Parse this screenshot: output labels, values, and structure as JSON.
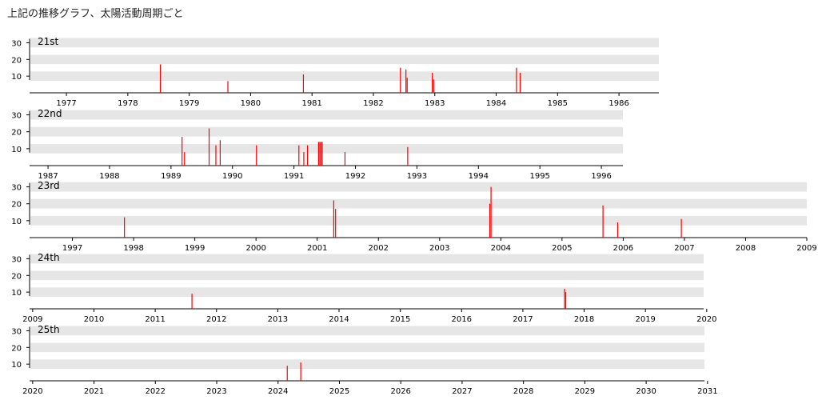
{
  "page": {
    "title": "上記の推移グラフ、太陽活動周期ごと"
  },
  "colors": {
    "band": "#e6e6e6",
    "spike": "#ff0000",
    "axis": "#000000"
  },
  "chart_data": [
    {
      "type": "bar",
      "title": "21st",
      "xlim": [
        1976.4,
        1986.65
      ],
      "ylim": [
        0,
        35
      ],
      "y_ticks": [
        10,
        20,
        30
      ],
      "x_ticks": [
        "1977",
        "1978",
        "1979",
        "1980",
        "1981",
        "1982",
        "1983",
        "1984",
        "1985",
        "1986"
      ],
      "x": [
        1978.53,
        1979.63,
        1980.86,
        1982.44,
        1982.53,
        1982.55,
        1982.96,
        1982.98,
        1984.33,
        1984.39
      ],
      "values": [
        17,
        7,
        11,
        15,
        14,
        9,
        12,
        8,
        15,
        12
      ]
    },
    {
      "type": "bar",
      "title": "22nd",
      "xlim": [
        1986.7,
        1996.35
      ],
      "ylim": [
        0,
        35
      ],
      "y_ticks": [
        10,
        20,
        30
      ],
      "x_ticks": [
        "1987",
        "1988",
        "1989",
        "1990",
        "1991",
        "1992",
        "1993",
        "1994",
        "1995",
        "1996"
      ],
      "x": [
        1989.18,
        1989.22,
        1989.62,
        1989.73,
        1989.8,
        1990.39,
        1991.08,
        1991.16,
        1991.22,
        1991.4,
        1991.42,
        1991.44,
        1991.46,
        1991.83,
        1992.85
      ],
      "values": [
        17,
        8,
        22,
        12,
        15,
        12,
        12,
        8,
        12,
        14,
        14,
        14,
        14,
        8,
        11
      ]
    },
    {
      "type": "bar",
      "title": "23rd",
      "xlim": [
        1996.3,
        2009.0
      ],
      "ylim": [
        0,
        35
      ],
      "y_ticks": [
        10,
        20,
        30
      ],
      "x_ticks": [
        "1997",
        "1998",
        "1999",
        "2000",
        "2001",
        "2002",
        "2003",
        "2004",
        "2005",
        "2006",
        "2007",
        "2008",
        "2009"
      ],
      "x": [
        1997.85,
        2001.27,
        2001.3,
        2003.82,
        2003.84,
        2005.67,
        2005.91,
        2006.95
      ],
      "values": [
        12,
        22,
        17,
        20,
        30,
        19,
        9,
        11
      ]
    },
    {
      "type": "bar",
      "title": "24th",
      "xlim": [
        2008.95,
        2019.95
      ],
      "ylim": [
        0,
        35
      ],
      "y_ticks": [
        10,
        20,
        30
      ],
      "x_ticks": [
        "2009",
        "2010",
        "2011",
        "2012",
        "2013",
        "2014",
        "2015",
        "2016",
        "2017",
        "2018",
        "2019",
        "2020"
      ],
      "x": [
        2011.6,
        2017.68,
        2017.7
      ],
      "values": [
        9,
        12,
        10
      ]
    },
    {
      "type": "bar",
      "title": "25th",
      "xlim": [
        2019.95,
        2030.95
      ],
      "ylim": [
        0,
        35
      ],
      "y_ticks": [
        10,
        20,
        30
      ],
      "x_ticks": [
        "2020",
        "2021",
        "2022",
        "2023",
        "2024",
        "2025",
        "2026",
        "2027",
        "2028",
        "2029",
        "2030",
        "2031"
      ],
      "x": [
        2024.15,
        2024.37
      ],
      "values": [
        9,
        11
      ]
    }
  ]
}
